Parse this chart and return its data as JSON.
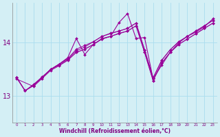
{
  "xlabel": "Windchill (Refroidissement éolien,°C)",
  "bg_color": "#d4eff5",
  "line_color": "#990099",
  "grid_color": "#aaddee",
  "xlim": [
    -0.5,
    23.5
  ],
  "ylim": [
    12.5,
    14.75
  ],
  "yticks": [
    13,
    14
  ],
  "xticks": [
    0,
    1,
    2,
    3,
    4,
    5,
    6,
    7,
    8,
    9,
    10,
    11,
    12,
    13,
    14,
    15,
    16,
    17,
    18,
    19,
    20,
    21,
    22,
    23
  ],
  "lines": [
    {
      "x": [
        0,
        1,
        2,
        3,
        4,
        5,
        6,
        7,
        8,
        9,
        10,
        11,
        12,
        13,
        14,
        15,
        16,
        17,
        18,
        19,
        20,
        21,
        22,
        23
      ],
      "y": [
        13.35,
        13.1,
        13.2,
        13.35,
        13.5,
        13.58,
        13.68,
        13.82,
        13.88,
        13.97,
        14.07,
        14.12,
        14.17,
        14.22,
        14.32,
        13.82,
        13.29,
        13.62,
        13.82,
        13.97,
        14.07,
        14.17,
        14.27,
        14.37
      ]
    },
    {
      "x": [
        0,
        1,
        2,
        3,
        4,
        5,
        6,
        7,
        8,
        9,
        10,
        11,
        12,
        13,
        14,
        15,
        16,
        17,
        18,
        19,
        20,
        21,
        22,
        23
      ],
      "y": [
        13.35,
        13.1,
        13.22,
        13.36,
        13.5,
        13.6,
        13.7,
        13.85,
        13.92,
        14.02,
        14.12,
        14.17,
        14.22,
        14.27,
        14.37,
        13.87,
        13.34,
        13.67,
        13.87,
        14.02,
        14.12,
        14.22,
        14.32,
        14.42
      ]
    },
    {
      "x": [
        0,
        1,
        2,
        3,
        4,
        5,
        6,
        7,
        8,
        9,
        10,
        11,
        12,
        13,
        14,
        15,
        16,
        17,
        18,
        19,
        20,
        21,
        22,
        23
      ],
      "y": [
        13.35,
        13.1,
        13.2,
        13.35,
        13.5,
        13.6,
        13.7,
        13.88,
        13.95,
        14.02,
        14.12,
        14.18,
        14.22,
        14.27,
        14.37,
        13.87,
        13.34,
        13.67,
        13.87,
        14.02,
        14.12,
        14.22,
        14.32,
        14.42
      ]
    },
    {
      "x": [
        0,
        2,
        3,
        4,
        5,
        6,
        7,
        8,
        9,
        10,
        11,
        12,
        13,
        14,
        15,
        16,
        17,
        18,
        19,
        20,
        21,
        22,
        23
      ],
      "y": [
        13.32,
        13.18,
        13.33,
        13.48,
        13.57,
        13.67,
        13.82,
        13.88,
        13.97,
        14.07,
        14.12,
        14.18,
        14.22,
        14.32,
        13.82,
        13.29,
        13.62,
        13.82,
        13.97,
        14.07,
        14.17,
        14.27,
        14.37
      ]
    }
  ],
  "wiggly_line": {
    "x": [
      0,
      1,
      2,
      3,
      4,
      5,
      6,
      7,
      8,
      9,
      10,
      11,
      12,
      13,
      14,
      15,
      16,
      17,
      18,
      19,
      20,
      21,
      22,
      23
    ],
    "y": [
      13.35,
      13.1,
      13.2,
      13.35,
      13.5,
      13.6,
      13.72,
      14.08,
      13.78,
      13.97,
      14.08,
      14.12,
      14.38,
      14.55,
      14.08,
      14.1,
      13.32,
      13.58,
      13.82,
      14.0,
      14.12,
      14.2,
      14.3,
      14.45
    ]
  }
}
